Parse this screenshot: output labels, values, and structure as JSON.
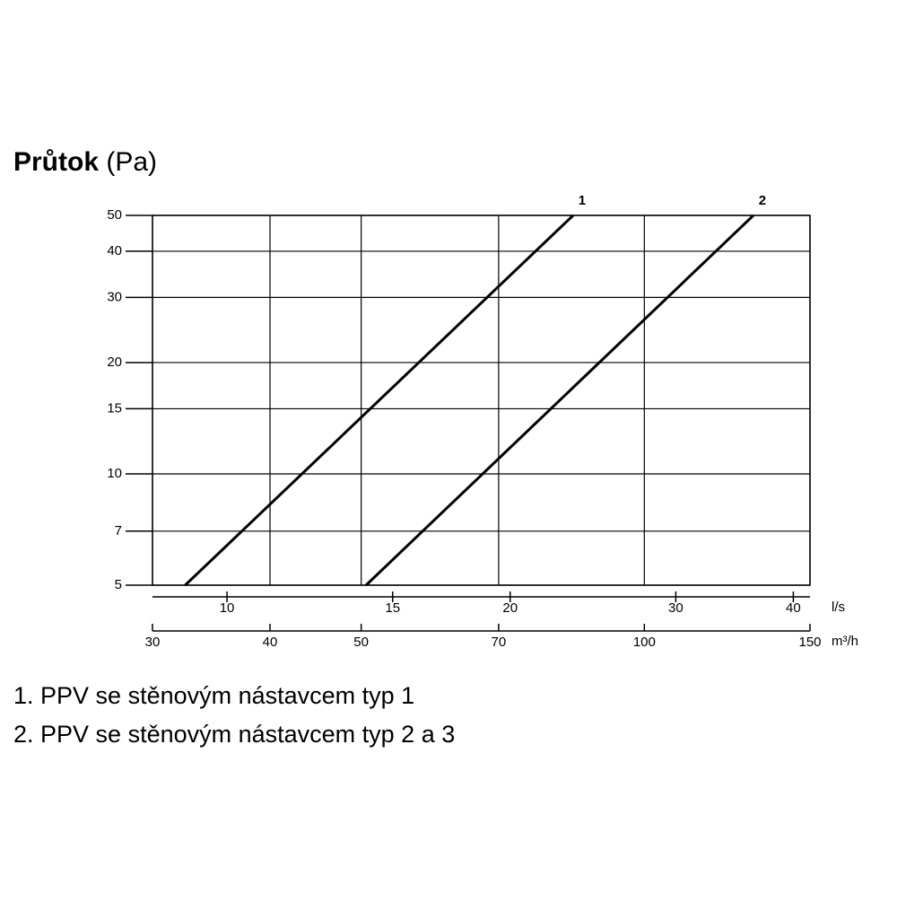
{
  "chart_data": {
    "type": "line",
    "title": "Průtok",
    "y_label": "(Pa)",
    "x_label": "m³/h",
    "x2_label": "l/s",
    "log_x": true,
    "log_y": true,
    "grid": true,
    "xlim": [
      30,
      150
    ],
    "xticks": [
      30,
      40,
      50,
      70,
      100,
      150
    ],
    "x2lim": [
      8.333,
      41.667
    ],
    "x2ticks": [
      10,
      15,
      20,
      30,
      40
    ],
    "ylim": [
      5,
      50
    ],
    "yticks": [
      5,
      7,
      10,
      15,
      20,
      30,
      40,
      50
    ],
    "series": [
      {
        "name": "1",
        "color": "#000000",
        "x": [
          32.5,
          84
        ],
        "values": [
          5,
          50
        ]
      },
      {
        "name": "2",
        "color": "#000000",
        "x": [
          50.6,
          130.6
        ],
        "values": [
          5,
          50
        ]
      }
    ],
    "notes": [
      "1. PPV se stěnovým nástavcem typ 1",
      "2. PPV se stěnovým nástavcem typ 2 a 3"
    ]
  }
}
